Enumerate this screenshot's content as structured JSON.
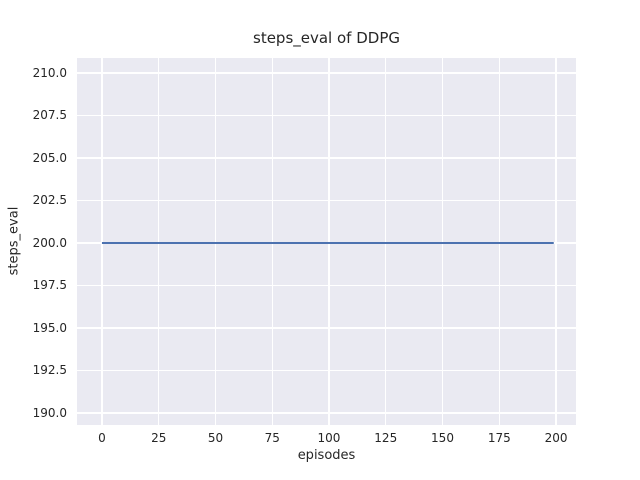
{
  "figure": {
    "background": "#ffffff",
    "axes_background": "#eaeaf2",
    "grid_color": "#ffffff",
    "text_color": "#262626"
  },
  "chart_data": {
    "type": "line",
    "title": "steps_eval of DDPG",
    "xlabel": "episodes",
    "ylabel": "steps_eval",
    "grid": true,
    "legend_position": "none",
    "xlim": [
      -11,
      208.8
    ],
    "ylim": [
      189.29,
      210.88
    ],
    "xticks": [
      0,
      25,
      50,
      75,
      100,
      125,
      150,
      175,
      200
    ],
    "xtick_labels": [
      "0",
      "25",
      "50",
      "75",
      "100",
      "125",
      "150",
      "175",
      "200"
    ],
    "yticks": [
      190.0,
      192.5,
      195.0,
      197.5,
      200.0,
      202.5,
      205.0,
      207.5,
      210.0
    ],
    "ytick_labels": [
      "190.0",
      "192.5",
      "195.0",
      "197.5",
      "200.0",
      "202.5",
      "205.0",
      "207.5",
      "210.0"
    ],
    "series": [
      {
        "name": "steps_eval",
        "color": "#4c72b0",
        "line_width": 2,
        "x": [
          0,
          199
        ],
        "y": [
          200.0,
          200.0
        ]
      }
    ]
  }
}
